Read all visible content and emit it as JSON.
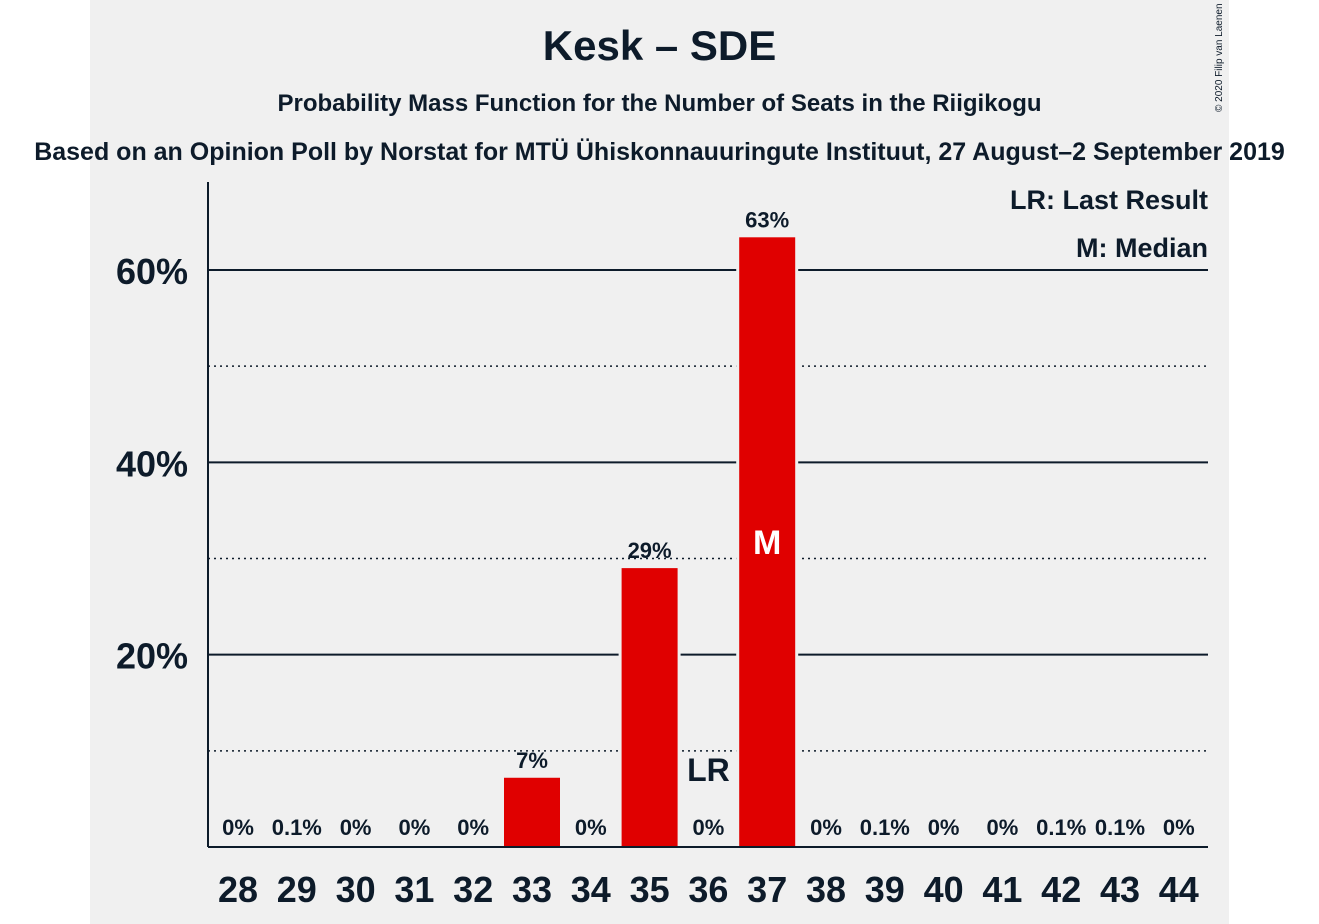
{
  "title": "Kesk – SDE",
  "subtitle": "Probability Mass Function for the Number of Seats in the Riigikogu",
  "caption": "Based on an Opinion Poll by Norstat for MTÜ Ühiskonnauuringute Instituut, 27 August–2 September 2019",
  "copyright": "© 2020 Filip van Laenen",
  "legend": {
    "last_result": "LR: Last Result",
    "median": "M: Median"
  },
  "colors": {
    "bar": "#e00000",
    "text": "#0d1b2a",
    "background": "#f0f0f0"
  },
  "chart_data": {
    "type": "bar",
    "categories": [
      "28",
      "29",
      "30",
      "31",
      "32",
      "33",
      "34",
      "35",
      "36",
      "37",
      "38",
      "39",
      "40",
      "41",
      "42",
      "43",
      "44"
    ],
    "values": [
      0,
      0.1,
      0,
      0,
      0,
      7.2,
      0,
      29,
      0,
      63.4,
      0,
      0.1,
      0,
      0,
      0.1,
      0.1,
      0
    ],
    "value_labels": [
      "0%",
      "0.1%",
      "0%",
      "0%",
      "0%",
      "7%",
      "0%",
      "29%",
      "0%",
      "63%",
      "0%",
      "0.1%",
      "0%",
      "0%",
      "0.1%",
      "0.1%",
      "0%"
    ],
    "y_ticks": [
      20,
      40,
      60
    ],
    "y_tick_labels": [
      "20%",
      "40%",
      "60%"
    ],
    "ylim": [
      0,
      68
    ],
    "minor_gridlines": [
      10,
      30,
      50
    ],
    "last_result_seat": "36",
    "last_result_marker": "LR",
    "median_seat": "37",
    "median_marker": "M",
    "legend_position": "top-right"
  }
}
